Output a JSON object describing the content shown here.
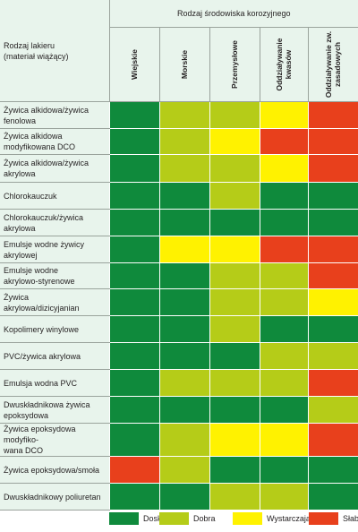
{
  "colors": {
    "doskonala": "#0f8a3c",
    "dobra": "#b5cc18",
    "wystarczajaca": "#fff200",
    "slaba": "#e8401c",
    "header_bg": "#e8f4ec"
  },
  "header": {
    "group_title": "Rodzaj środowiska korozyjnego",
    "corner_label": "Rodzaj lakieru\n(materiał wiążący)",
    "columns": [
      "Wiejskie",
      "Morskie",
      "Przemysłowe",
      "Oddziaływanie\nkwasów",
      "Oddziaływanie zw.\nzasadowych"
    ]
  },
  "rows": [
    {
      "label": "Żywica alkidowa/żywica\nfenolowa",
      "ratings": [
        "doskonala",
        "dobra",
        "dobra",
        "wystarczajaca",
        "slaba"
      ]
    },
    {
      "label": "Żywica alkidowa\nmodyfikowana DCO",
      "ratings": [
        "doskonala",
        "dobra",
        "wystarczajaca",
        "slaba",
        "slaba"
      ]
    },
    {
      "label": "Żywica alkidowa/żywica\nakrylowa",
      "ratings": [
        "doskonala",
        "dobra",
        "dobra",
        "wystarczajaca",
        "slaba"
      ]
    },
    {
      "label": "Chlorokauczuk",
      "ratings": [
        "doskonala",
        "doskonala",
        "dobra",
        "doskonala",
        "doskonala"
      ]
    },
    {
      "label": "Chlorokauczuk/żywica akrylowa",
      "ratings": [
        "doskonala",
        "doskonala",
        "doskonala",
        "doskonala",
        "doskonala"
      ]
    },
    {
      "label": "Emulsje wodne żywicy\nakrylowej",
      "ratings": [
        "doskonala",
        "wystarczajaca",
        "wystarczajaca",
        "slaba",
        "slaba"
      ]
    },
    {
      "label": "Emulsje wodne\nakrylowo-styrenowe",
      "ratings": [
        "doskonala",
        "doskonala",
        "dobra",
        "dobra",
        "slaba"
      ]
    },
    {
      "label": "Żywica\nakrylowa/dizicyjanian",
      "ratings": [
        "doskonala",
        "doskonala",
        "dobra",
        "dobra",
        "wystarczajaca"
      ]
    },
    {
      "label": "Kopolimery winylowe",
      "ratings": [
        "doskonala",
        "doskonala",
        "dobra",
        "doskonala",
        "doskonala"
      ]
    },
    {
      "label": "PVC/żywica akrylowa",
      "ratings": [
        "doskonala",
        "doskonala",
        "doskonala",
        "dobra",
        "dobra"
      ]
    },
    {
      "label": "Emulsja wodna PVC",
      "ratings": [
        "doskonala",
        "dobra",
        "dobra",
        "dobra",
        "slaba"
      ]
    },
    {
      "label": "Dwuskładnikowa żywica\nepoksydowa",
      "ratings": [
        "doskonala",
        "doskonala",
        "doskonala",
        "doskonala",
        "dobra"
      ]
    },
    {
      "label": "Żywica epoksydowa modyfiko-\nwana DCO",
      "ratings": [
        "doskonala",
        "dobra",
        "wystarczajaca",
        "wystarczajaca",
        "slaba"
      ]
    },
    {
      "label": "Żywica epoksydowa/smoła",
      "ratings": [
        "slaba",
        "dobra",
        "doskonala",
        "doskonala",
        "doskonala"
      ]
    },
    {
      "label": "Dwuskładnikowy poliuretan",
      "ratings": [
        "doskonala",
        "doskonala",
        "dobra",
        "dobra",
        "doskonala"
      ]
    }
  ],
  "legend": [
    {
      "key": "doskonala",
      "label": "Doskonała"
    },
    {
      "key": "dobra",
      "label": "Dobra"
    },
    {
      "key": "wystarczajaca",
      "label": "Wystarczająca"
    },
    {
      "key": "slaba",
      "label": "Słaba"
    }
  ]
}
